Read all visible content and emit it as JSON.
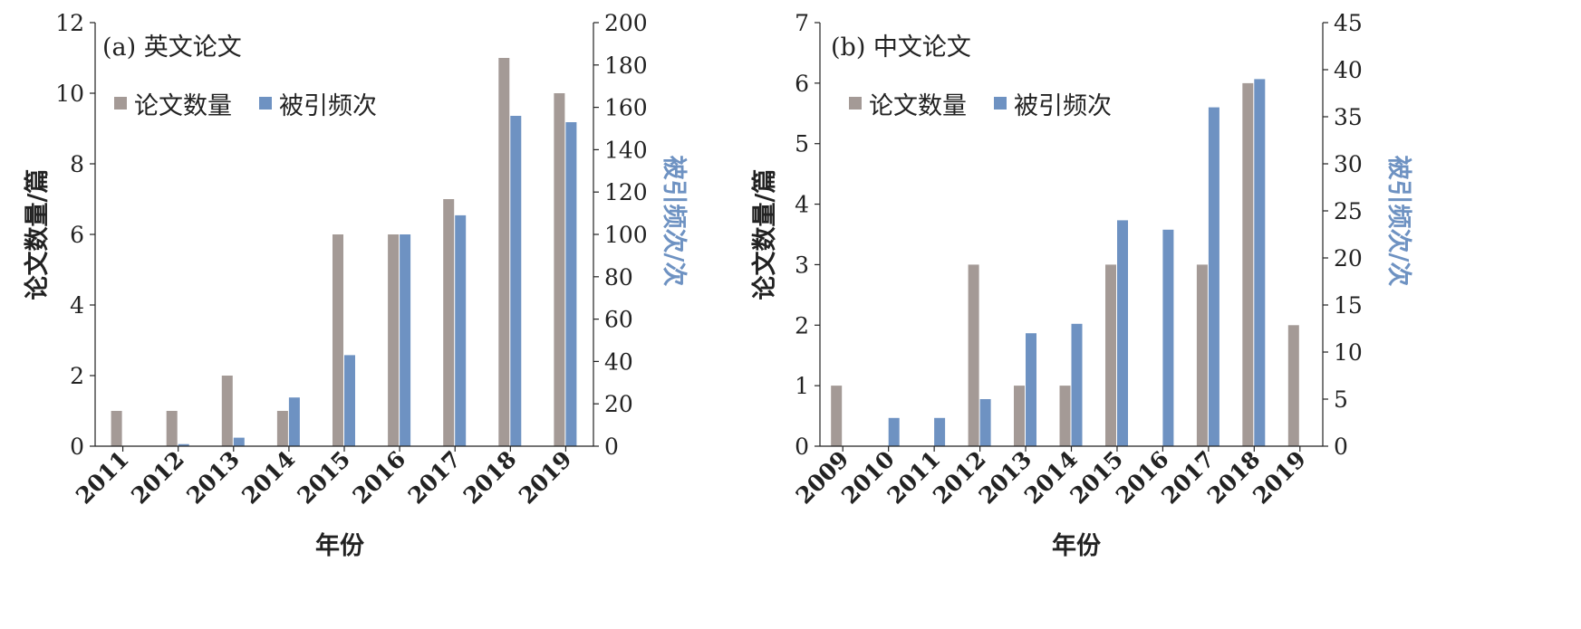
{
  "chart_data": [
    {
      "type": "bar",
      "panel_label": "(a) 英文论文",
      "xlabel": "年份",
      "ylabel_left": "论文数量/篇",
      "ylabel_right": "被引频次/次",
      "categories": [
        "2011",
        "2012",
        "2013",
        "2014",
        "2015",
        "2016",
        "2017",
        "2018",
        "2019"
      ],
      "ylim_left": [
        0,
        12
      ],
      "yticks_left": [
        0,
        2,
        4,
        6,
        8,
        10,
        12
      ],
      "ylim_right": [
        0,
        200
      ],
      "yticks_right": [
        0,
        20,
        40,
        60,
        80,
        100,
        120,
        140,
        160,
        180,
        200
      ],
      "legend_position": "top-left",
      "grid": false,
      "series": [
        {
          "name": "论文数量",
          "axis": "left",
          "color": "#a49a96",
          "values": [
            1,
            1,
            2,
            1,
            6,
            6,
            7,
            11,
            10
          ]
        },
        {
          "name": "被引频次",
          "axis": "right",
          "color": "#6e92c2",
          "values": [
            0,
            1,
            4,
            23,
            43,
            100,
            109,
            156,
            153
          ]
        }
      ]
    },
    {
      "type": "bar",
      "panel_label": "(b) 中文论文",
      "xlabel": "年份",
      "ylabel_left": "论文数量/篇",
      "ylabel_right": "被引频次/次",
      "categories": [
        "2009",
        "2010",
        "2011",
        "2012",
        "2013",
        "2014",
        "2015",
        "2016",
        "2017",
        "2018",
        "2019"
      ],
      "ylim_left": [
        0,
        7
      ],
      "yticks_left": [
        0,
        1,
        2,
        3,
        4,
        5,
        6,
        7
      ],
      "ylim_right": [
        0,
        45
      ],
      "yticks_right": [
        0,
        5,
        10,
        15,
        20,
        25,
        30,
        35,
        40,
        45
      ],
      "legend_position": "top-left",
      "grid": false,
      "series": [
        {
          "name": "论文数量",
          "axis": "left",
          "color": "#a49a96",
          "values": [
            1,
            0,
            0,
            3,
            1,
            1,
            3,
            0,
            3,
            6,
            2
          ]
        },
        {
          "name": "被引频次",
          "axis": "right",
          "color": "#6e92c2",
          "values": [
            0,
            3,
            3,
            5,
            12,
            13,
            24,
            23,
            36,
            39,
            0
          ]
        }
      ]
    }
  ],
  "colors": {
    "axis": "#222222",
    "right_axis_label": "#6e92c2"
  }
}
